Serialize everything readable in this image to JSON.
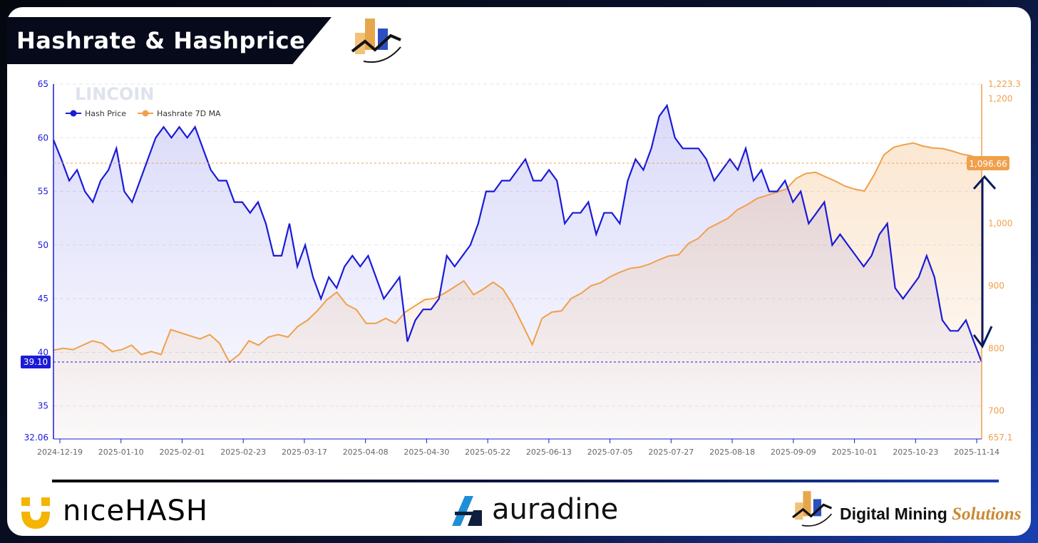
{
  "title": "Hashrate & Hashprice",
  "watermark": "LINCOIN",
  "legend": [
    {
      "label": "Hash Price",
      "color": "#1a1ad8"
    },
    {
      "label": "Hashrate 7D MA",
      "color": "#f0a04b"
    }
  ],
  "footer": {
    "nicehash_text": "nıceHASH",
    "auradine_text": "auradine",
    "dms_text_main": "Digital Mining",
    "dms_text_accent": "Solutions"
  },
  "chart_data": {
    "type": "line",
    "left_axis": {
      "min": 32.06,
      "max": 65,
      "ticks": [
        65,
        60,
        55,
        50,
        45,
        40,
        35
      ],
      "min_label": "32.06",
      "color": "#1a1ad8"
    },
    "right_axis": {
      "min": 657.1,
      "max": 1223.3,
      "ticks": [
        1200,
        1000,
        900,
        800,
        700
      ],
      "tick_labels": [
        "1,200",
        "1,000",
        "900",
        "800",
        "700"
      ],
      "max_label": "1,223.3",
      "min_label": "657.1",
      "color": "#f0a04b"
    },
    "x_ticks": [
      "2024-12-19",
      "2025-01-10",
      "2025-02-01",
      "2025-02-23",
      "2025-03-17",
      "2025-04-08",
      "2025-04-30",
      "2025-05-22",
      "2025-06-13",
      "2025-07-05",
      "2025-07-27",
      "2025-08-18",
      "2025-09-09",
      "2025-10-01",
      "2025-10-23",
      "2025-11-14"
    ],
    "current_hashprice_label": "39.10",
    "current_hashprice": 39.1,
    "current_hashrate_label": "1,096.66",
    "current_hashrate": 1096.66,
    "series": [
      {
        "name": "Hash Price",
        "axis": "left",
        "color": "#1a1ad8",
        "values": [
          59.8,
          58,
          56,
          57,
          55,
          54,
          56,
          57,
          59,
          55,
          54,
          56,
          58,
          60,
          61,
          60,
          61,
          60,
          61,
          59,
          57,
          56,
          56,
          54,
          54,
          53,
          54,
          52,
          49,
          49,
          52,
          48,
          50,
          47,
          45,
          47,
          46,
          48,
          49,
          48,
          49,
          47,
          45,
          46,
          47,
          41,
          43,
          44,
          44,
          45,
          49,
          48,
          49,
          50,
          52,
          55,
          55,
          56,
          56,
          57,
          58,
          56,
          56,
          57,
          56,
          52,
          53,
          53,
          54,
          51,
          53,
          53,
          52,
          56,
          58,
          57,
          59,
          62,
          63,
          60,
          59,
          59,
          59,
          58,
          56,
          57,
          58,
          57,
          59,
          56,
          57,
          55,
          55,
          56,
          54,
          55,
          52,
          53,
          54,
          50,
          51,
          50,
          49,
          48,
          49,
          51,
          52,
          46,
          45,
          46,
          47,
          49,
          47,
          43,
          42,
          42,
          43,
          41,
          39.1
        ]
      },
      {
        "name": "Hashrate 7D MA",
        "axis": "right",
        "color": "#f0a04b",
        "values": [
          797,
          800,
          798,
          805,
          812,
          808,
          795,
          798,
          805,
          790,
          795,
          790,
          830,
          825,
          820,
          815,
          822,
          808,
          778,
          790,
          812,
          805,
          818,
          822,
          818,
          835,
          845,
          860,
          878,
          890,
          870,
          862,
          840,
          840,
          848,
          840,
          858,
          868,
          878,
          880,
          888,
          898,
          908,
          886,
          895,
          906,
          895,
          870,
          838,
          806,
          848,
          858,
          860,
          880,
          888,
          900,
          905,
          915,
          922,
          928,
          930,
          935,
          942,
          948,
          950,
          968,
          976,
          992,
          1000,
          1008,
          1022,
          1030,
          1040,
          1045,
          1050,
          1055,
          1072,
          1080,
          1082,
          1075,
          1068,
          1060,
          1055,
          1052,
          1078,
          1110,
          1122,
          1126,
          1129,
          1124,
          1121,
          1120,
          1116,
          1111,
          1108,
          1096.66
        ]
      }
    ]
  }
}
